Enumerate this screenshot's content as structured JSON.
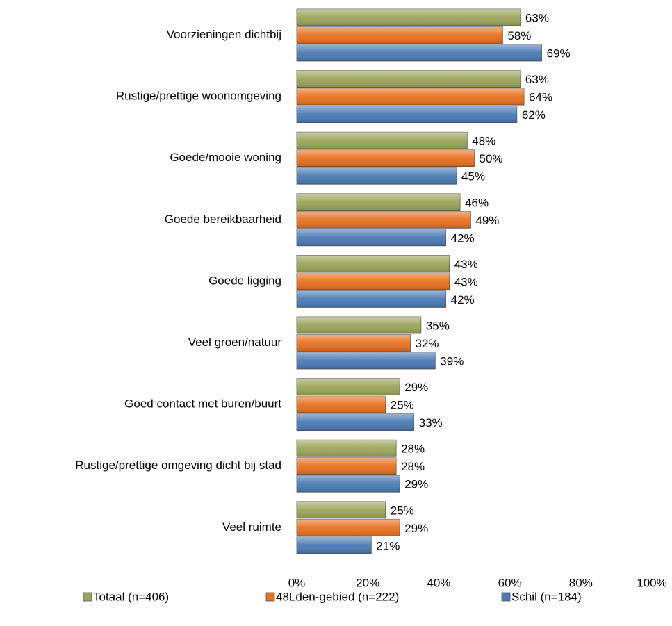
{
  "chart_data": {
    "type": "bar",
    "orientation": "horizontal",
    "categories": [
      "Voorzieningen dichtbij",
      "Rustige/prettige woonomgeving",
      "Goede/mooie woning",
      "Goede bereikbaarheid",
      "Goede ligging",
      "Veel groen/natuur",
      "Goed contact met buren/buurt",
      "Rustige/prettige omgeving dicht bij stad",
      "Veel ruimte"
    ],
    "series": [
      {
        "name": "Totaal (n=406)",
        "color": "#9aa55a",
        "values": [
          63,
          63,
          48,
          46,
          43,
          35,
          29,
          28,
          25
        ],
        "value_labels": [
          "63%",
          "63%",
          "48%",
          "46%",
          "43%",
          "35%",
          "29%",
          "28%",
          "25%"
        ]
      },
      {
        "name": "48Lden-gebied (n=222)",
        "color": "#e8711f",
        "values": [
          58,
          64,
          50,
          49,
          43,
          32,
          25,
          28,
          29
        ],
        "value_labels": [
          "58%",
          "64%",
          "50%",
          "49%",
          "43%",
          "32%",
          "25%",
          "28%",
          "29%"
        ]
      },
      {
        "name": "Schil (n=184)",
        "color": "#4a7ab5",
        "values": [
          69,
          62,
          45,
          42,
          42,
          39,
          33,
          29,
          21
        ],
        "value_labels": [
          "69%",
          "62%",
          "45%",
          "42%",
          "42%",
          "39%",
          "33%",
          "29%",
          "21%"
        ]
      }
    ],
    "xlim": [
      0,
      100
    ],
    "xticks": [
      {
        "value": 0,
        "label": "0%"
      },
      {
        "value": 20,
        "label": "20%"
      },
      {
        "value": 40,
        "label": "40%"
      },
      {
        "value": 60,
        "label": "60%"
      },
      {
        "value": 80,
        "label": "80%"
      },
      {
        "value": 100,
        "label": "100%"
      }
    ],
    "legend": "bottom"
  }
}
